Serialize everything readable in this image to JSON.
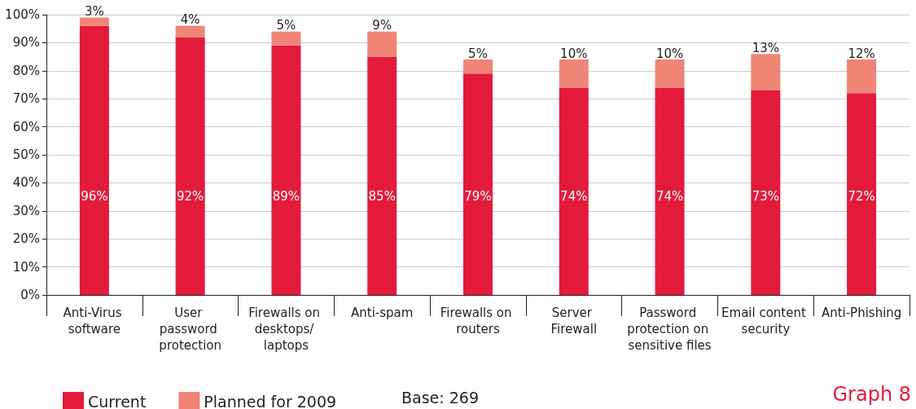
{
  "chart_data": {
    "type": "bar",
    "stacked": true,
    "categories": [
      "Anti-Virus software",
      "User password protection",
      "Firewalls on desktops/ laptops",
      "Anti-spam",
      "Firewalls on routers",
      "Server Firewall",
      "Password protection on sensitive files",
      "Email content security",
      "Anti-Phishing"
    ],
    "series": [
      {
        "name": "Current",
        "color": "#e31b3b",
        "values": [
          96,
          92,
          89,
          85,
          79,
          74,
          74,
          73,
          72
        ],
        "value_labels": [
          "96%",
          "92%",
          "89%",
          "85%",
          "79%",
          "74%",
          "74%",
          "73%",
          "72%"
        ]
      },
      {
        "name": "Planned for 2009",
        "color": "#f08577",
        "values": [
          3,
          4,
          5,
          9,
          5,
          10,
          10,
          13,
          12
        ],
        "value_labels": [
          "3%",
          "4%",
          "5%",
          "9%",
          "5%",
          "10%",
          "10%",
          "13%",
          "12%"
        ]
      }
    ],
    "ylim": [
      0,
      100
    ],
    "yticks": [
      {
        "value": 0,
        "label": "0%"
      },
      {
        "value": 10,
        "label": "10%"
      },
      {
        "value": 20,
        "label": "20%"
      },
      {
        "value": 30,
        "label": "30%"
      },
      {
        "value": 40,
        "label": "40%"
      },
      {
        "value": 50,
        "label": "50%"
      },
      {
        "value": 60,
        "label": "60%"
      },
      {
        "value": 70,
        "label": "70%"
      },
      {
        "value": 80,
        "label": "80%"
      },
      {
        "value": 90,
        "label": "90%"
      },
      {
        "value": 100,
        "label": "100%"
      }
    ],
    "grid": "y",
    "legend": "bottom left",
    "annotations": [
      "Base: 269",
      "Graph 8"
    ]
  }
}
